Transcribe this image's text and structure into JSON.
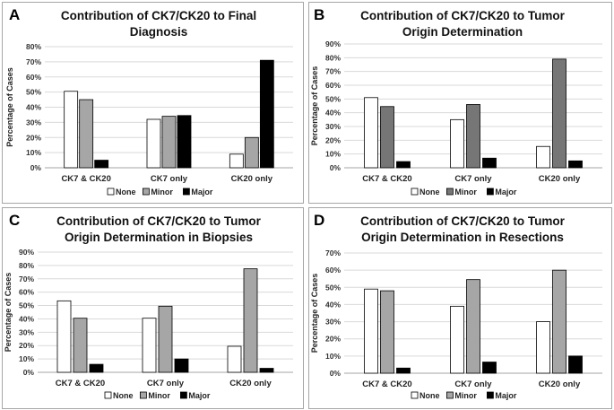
{
  "chart_data": [
    {
      "panel_label": "A",
      "type": "bar",
      "title_lines": [
        "Contribution of CK7/CK20 to Final",
        "Diagnosis"
      ],
      "ylabel": "Percentage of Cases",
      "xlabel": "",
      "ylim": [
        0,
        80
      ],
      "yticks": [
        "0%",
        "10%",
        "20%",
        "30%",
        "40%",
        "50%",
        "60%",
        "70%",
        "80%"
      ],
      "categories": [
        "CK7 & CK20",
        "CK7 only",
        "CK20 only"
      ],
      "series": [
        {
          "name": "None",
          "values": [
            50.5,
            32,
            9
          ]
        },
        {
          "name": "Minor",
          "values": [
            45,
            34,
            20
          ]
        },
        {
          "name": "Major",
          "values": [
            5,
            34.5,
            71
          ]
        }
      ]
    },
    {
      "panel_label": "B",
      "type": "bar",
      "title_lines": [
        "Contribution of CK7/CK20 to Tumor",
        "Origin Determination"
      ],
      "ylabel": "Percentage of Cases",
      "xlabel": "",
      "ylim": [
        0,
        90
      ],
      "yticks": [
        "0%",
        "10%",
        "20%",
        "30%",
        "40%",
        "50%",
        "60%",
        "70%",
        "80%",
        "90%"
      ],
      "categories": [
        "CK7 & CK20",
        "CK7 only",
        "CK20 only"
      ],
      "series": [
        {
          "name": "None",
          "values": [
            51,
            35,
            15.5
          ]
        },
        {
          "name": "Minor",
          "values": [
            44.5,
            46,
            79
          ]
        },
        {
          "name": "Major",
          "values": [
            4.5,
            7,
            5
          ]
        }
      ]
    },
    {
      "panel_label": "C",
      "type": "bar",
      "title_lines": [
        "Contribution of CK7/CK20 to Tumor",
        "Origin Determination in Biopsies"
      ],
      "ylabel": "Percentage of Cases",
      "xlabel": "",
      "ylim": [
        0,
        90
      ],
      "yticks": [
        "0%",
        "10%",
        "20%",
        "30%",
        "40%",
        "50%",
        "60%",
        "70%",
        "80%",
        "90%"
      ],
      "categories": [
        "CK7 & CK20",
        "CK7 only",
        "CK20 only"
      ],
      "series": [
        {
          "name": "None",
          "values": [
            53.5,
            40.5,
            19.5
          ]
        },
        {
          "name": "Minor",
          "values": [
            40.5,
            49.5,
            77.5
          ]
        },
        {
          "name": "Major",
          "values": [
            6,
            10,
            3
          ]
        }
      ]
    },
    {
      "panel_label": "D",
      "type": "bar",
      "title_lines": [
        "Contribution of CK7/CK20 to Tumor",
        "Origin Determination in Resections"
      ],
      "ylabel": "Percentage of Cases",
      "xlabel": "",
      "ylim": [
        0,
        70
      ],
      "yticks": [
        "0%",
        "10%",
        "20%",
        "30%",
        "40%",
        "50%",
        "60%",
        "70%"
      ],
      "categories": [
        "CK7 & CK20",
        "CK7 only",
        "CK20 only"
      ],
      "series": [
        {
          "name": "None",
          "values": [
            49,
            39,
            30
          ]
        },
        {
          "name": "Minor",
          "values": [
            48,
            54.5,
            60
          ]
        },
        {
          "name": "Major",
          "values": [
            3,
            6.5,
            10
          ]
        }
      ]
    }
  ],
  "colors": {
    "None": "#ffffff",
    "Minor_AC": "#a6a6a6",
    "Minor_B": "#767676",
    "Major": "#000000",
    "bar_stroke": "#000000"
  }
}
